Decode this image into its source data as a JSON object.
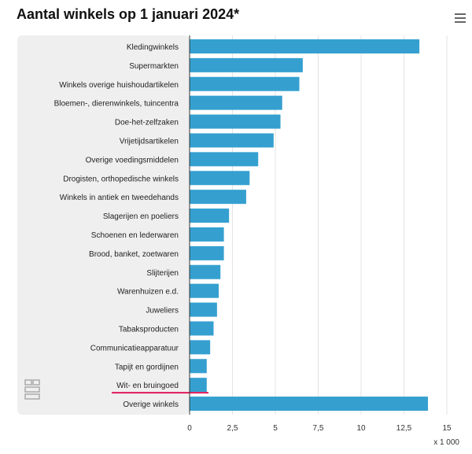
{
  "chart_data": {
    "type": "bar",
    "orientation": "horizontal",
    "title": "Aantal winkels op 1 januari 2024*",
    "xlabel": "x 1 000",
    "ylabel": "",
    "xlim": [
      0,
      15
    ],
    "xticks": [
      "0",
      "2,5",
      "5",
      "7,5",
      "10",
      "12,5",
      "15"
    ],
    "xtick_values": [
      0,
      2.5,
      5,
      7.5,
      10,
      12.5,
      15
    ],
    "grid": true,
    "categories": [
      "Kledingwinkels",
      "Supermarkten",
      "Winkels overige huishoudartikelen",
      "Bloemen-, dierenwinkels, tuincentra",
      "Doe-het-zelfzaken",
      "Vrijetijdsartikelen",
      "Overige voedingsmiddelen",
      "Drogisten, orthopedische winkels",
      "Winkels in antiek en tweedehands",
      "Slagerijen en poeliers",
      "Schoenen en lederwaren",
      "Brood, banket, zoetwaren",
      "Slijterijen",
      "Warenhuizen e.d.",
      "Juweliers",
      "Tabaksproducten",
      "Communicatieapparatuur",
      "Tapijt en gordijnen",
      "Wit- en bruingoed",
      "Overige winkels"
    ],
    "values": [
      13.4,
      6.6,
      6.4,
      5.4,
      5.3,
      4.9,
      4.0,
      3.5,
      3.3,
      2.3,
      2.0,
      2.0,
      1.8,
      1.7,
      1.6,
      1.4,
      1.2,
      1.0,
      1.0,
      13.9
    ],
    "highlighted_category": "Wit- en bruingoed",
    "colors": {
      "bar": "#35a0d0",
      "highlight_underline": "#e0195a",
      "panel": "#efefef"
    }
  },
  "menu_icon": "hamburger-menu-icon",
  "logo_icon": "cbs-logo-icon"
}
